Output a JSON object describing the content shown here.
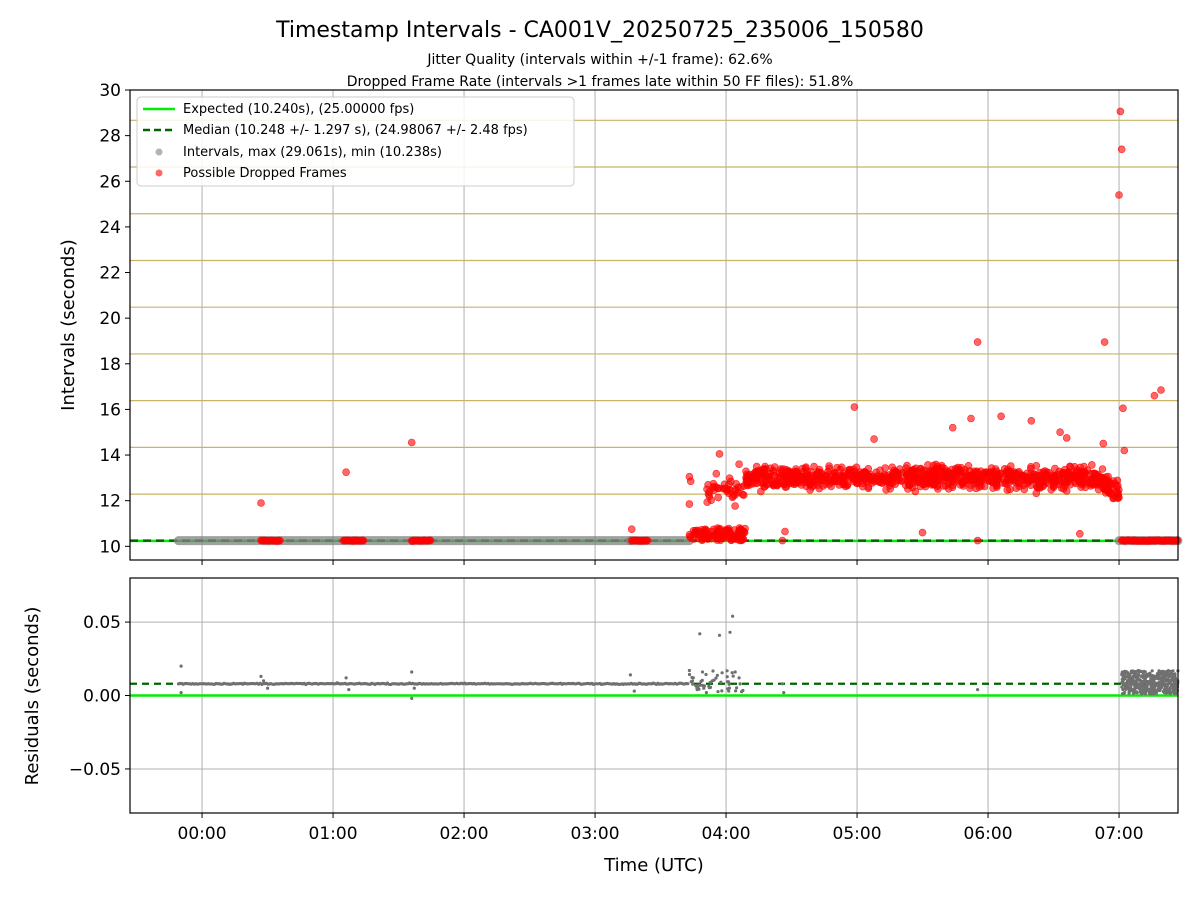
{
  "chart_data": [
    {
      "type": "scatter",
      "title": "Timestamp Intervals - CA001V_20250725_235006_150580",
      "subtitle_lines": [
        "Jitter Quality (intervals within +/-1 frame): 62.6%",
        "Dropped Frame Rate (intervals >1 frames late within 50 FF files): 51.8%"
      ],
      "xlabel": "",
      "ylabel": "Intervals (seconds)",
      "xlim_hours": [
        -0.55,
        7.45
      ],
      "ylim": [
        9.4,
        30
      ],
      "y_ticks": [
        10,
        12,
        14,
        16,
        18,
        20,
        22,
        24,
        26,
        28,
        30
      ],
      "y_tick_labels": [
        "10",
        "12",
        "14",
        "16",
        "18",
        "20",
        "22",
        "24",
        "26",
        "28",
        "30"
      ],
      "grid": true,
      "legend_placement": "upper-left",
      "legend": [
        "Expected (10.240s), (25.00000 fps)",
        "Median (10.248 +/- 1.297 s), (24.98067 +/- 2.48 fps)",
        "Intervals, max (29.061s), min (10.238s)",
        "Possible Dropped Frames"
      ],
      "expected_line": 10.24,
      "median_line": 10.248,
      "frame_bands": [
        10.24,
        12.288,
        14.336,
        16.384,
        18.432,
        20.48,
        22.528,
        24.576,
        26.624,
        28.672
      ],
      "normal_intervals": {
        "x_range_hours": [
          -0.18,
          7.45
        ],
        "value": 10.248,
        "segments_hours": [
          [
            -0.18,
            3.27
          ],
          [
            3.27,
            3.72
          ],
          [
            7.0,
            7.45
          ]
        ]
      },
      "dropped_frames": {
        "outliers": [
          {
            "x": 0.45,
            "y": 11.9
          },
          {
            "x": 1.1,
            "y": 13.25
          },
          {
            "x": 1.6,
            "y": 14.55
          },
          {
            "x": 4.98,
            "y": 16.1
          },
          {
            "x": 5.13,
            "y": 14.7
          },
          {
            "x": 5.73,
            "y": 15.2
          },
          {
            "x": 5.87,
            "y": 15.6
          },
          {
            "x": 5.92,
            "y": 18.95
          },
          {
            "x": 6.1,
            "y": 15.7
          },
          {
            "x": 6.33,
            "y": 15.5
          },
          {
            "x": 6.55,
            "y": 15.0
          },
          {
            "x": 6.6,
            "y": 14.75
          },
          {
            "x": 6.88,
            "y": 14.5
          },
          {
            "x": 6.89,
            "y": 18.95
          },
          {
            "x": 7.01,
            "y": 29.06
          },
          {
            "x": 7.02,
            "y": 27.4
          },
          {
            "x": 7.0,
            "y": 25.4
          },
          {
            "x": 7.03,
            "y": 16.05
          },
          {
            "x": 7.04,
            "y": 14.2
          },
          {
            "x": 7.27,
            "y": 16.6
          },
          {
            "x": 7.32,
            "y": 16.85
          },
          {
            "x": 3.28,
            "y": 10.75
          },
          {
            "x": 3.72,
            "y": 13.05
          },
          {
            "x": 3.73,
            "y": 12.85
          },
          {
            "x": 3.72,
            "y": 11.85
          },
          {
            "x": 3.95,
            "y": 14.05
          },
          {
            "x": 4.1,
            "y": 13.6
          },
          {
            "x": 4.45,
            "y": 10.65
          },
          {
            "x": 5.5,
            "y": 10.6
          },
          {
            "x": 6.7,
            "y": 10.55
          },
          {
            "x": 5.92,
            "y": 10.25
          },
          {
            "x": 4.43,
            "y": 10.25
          }
        ],
        "clusters_at_expected_hours": [
          [
            0.45,
            0.6
          ],
          [
            1.08,
            1.24
          ],
          [
            1.6,
            1.75
          ],
          [
            3.28,
            3.4
          ],
          [
            7.02,
            7.45
          ]
        ],
        "dense_band": {
          "x_range_hours": [
            4.15,
            7.0
          ],
          "y_center": 13.0,
          "y_spread": 0.45
        },
        "transition_region": {
          "x_range_hours": [
            3.72,
            4.15
          ],
          "y_low": 10.25,
          "y_high": 10.8
        }
      }
    },
    {
      "type": "scatter",
      "title": "",
      "xlabel": "Time (UTC)",
      "ylabel": "Residuals (seconds)",
      "xlim_hours": [
        -0.55,
        7.45
      ],
      "ylim": [
        -0.08,
        0.08
      ],
      "y_ticks": [
        -0.05,
        0.0,
        0.05
      ],
      "y_tick_labels": [
        "−0.05",
        "0.00",
        "0.05"
      ],
      "x_ticks_hours": [
        0,
        1,
        2,
        3,
        4,
        5,
        6,
        7
      ],
      "x_tick_labels": [
        "00:00",
        "01:00",
        "02:00",
        "03:00",
        "04:00",
        "05:00",
        "06:00",
        "07:00"
      ],
      "grid": true,
      "expected_line": 0.0,
      "median_line": 0.008,
      "residual_band": {
        "x_range_hours": [
          -0.18,
          3.72
        ],
        "value": 0.008
      },
      "residual_points": [
        {
          "x": -0.16,
          "y": 0.02
        },
        {
          "x": -0.16,
          "y": 0.002
        },
        {
          "x": 0.45,
          "y": 0.013
        },
        {
          "x": 0.47,
          "y": 0.01
        },
        {
          "x": 0.5,
          "y": 0.005
        },
        {
          "x": 1.1,
          "y": 0.012
        },
        {
          "x": 1.12,
          "y": 0.004
        },
        {
          "x": 1.6,
          "y": 0.016
        },
        {
          "x": 1.6,
          "y": -0.002
        },
        {
          "x": 1.62,
          "y": 0.005
        },
        {
          "x": 3.27,
          "y": 0.014
        },
        {
          "x": 3.3,
          "y": 0.003
        },
        {
          "x": 3.72,
          "y": 0.017
        },
        {
          "x": 3.75,
          "y": 0.012
        },
        {
          "x": 3.78,
          "y": 0.004
        },
        {
          "x": 3.82,
          "y": 0.016
        },
        {
          "x": 3.85,
          "y": 0.002
        },
        {
          "x": 3.88,
          "y": 0.009
        },
        {
          "x": 3.8,
          "y": 0.042
        },
        {
          "x": 3.95,
          "y": 0.041
        },
        {
          "x": 4.03,
          "y": 0.043
        },
        {
          "x": 4.05,
          "y": 0.054
        },
        {
          "x": 4.07,
          "y": 0.016
        },
        {
          "x": 4.1,
          "y": 0.012
        },
        {
          "x": 4.02,
          "y": 0.003
        },
        {
          "x": 4.43,
          "y": 0.008
        },
        {
          "x": 4.44,
          "y": 0.002
        },
        {
          "x": 5.92,
          "y": 0.004
        }
      ],
      "late_cluster": {
        "x_range_hours": [
          7.02,
          7.45
        ],
        "y_low": 0.001,
        "y_high": 0.017
      }
    }
  ],
  "colors": {
    "expected": "#00ee00",
    "median": "#006400",
    "intervals": "#808080",
    "dropped": "#ff0000",
    "band": "#c8b464",
    "grid": "#b0b0b0"
  }
}
